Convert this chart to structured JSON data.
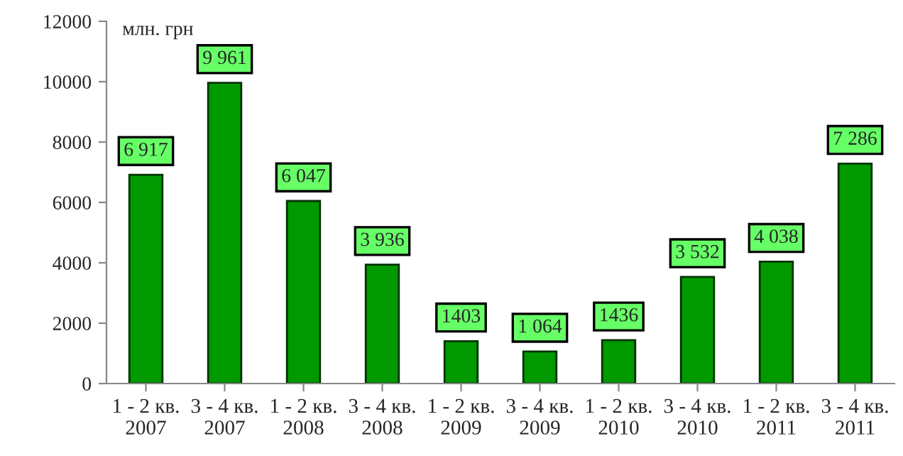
{
  "chart_data": {
    "type": "bar",
    "ylabel": "млн. грн",
    "categories": [
      "1 - 2 кв.\n2007",
      "3 - 4 кв.\n2007",
      "1 - 2 кв.\n2008",
      "3 - 4 кв.\n2008",
      "1 - 2 кв.\n2009",
      "3 - 4 кв.\n2009",
      "1 - 2 кв.\n2010",
      "3 - 4 кв.\n2010",
      "1 - 2 кв.\n2011",
      "3 - 4 кв.\n2011"
    ],
    "values": [
      6917,
      9961,
      6047,
      3936,
      1403,
      1064,
      1436,
      3532,
      4038,
      7286
    ],
    "value_labels": [
      "6 917",
      "9 961",
      "6 047",
      "3 936",
      "1403",
      "1 064",
      "1436",
      "3 532",
      "4 038",
      "7 286"
    ],
    "color": "#009900",
    "ylim": [
      0,
      12000
    ],
    "yticks": [
      0,
      2000,
      4000,
      6000,
      8000,
      10000,
      12000
    ],
    "grid": false,
    "legend": false
  }
}
